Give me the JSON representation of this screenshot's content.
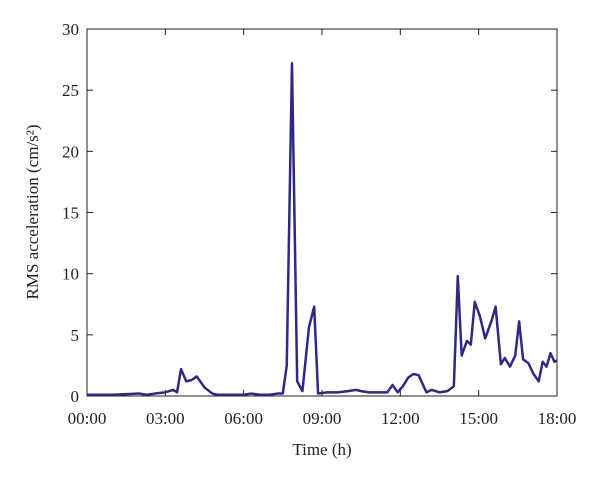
{
  "chart_data": {
    "type": "line",
    "xlabel": "Time (h)",
    "ylabel": "RMS acceleration (cm/s²)",
    "x": [
      0,
      0.5,
      1,
      1.5,
      2,
      2.3,
      2.6,
      3,
      3.3,
      3.45,
      3.6,
      3.8,
      4.0,
      4.2,
      4.5,
      4.8,
      5,
      5.5,
      6,
      6.3,
      6.6,
      7,
      7.3,
      7.5,
      7.65,
      7.85,
      8.05,
      8.25,
      8.5,
      8.7,
      8.85,
      9.2,
      9.6,
      10,
      10.3,
      10.5,
      10.8,
      11.2,
      11.5,
      11.7,
      11.9,
      12.1,
      12.3,
      12.5,
      12.7,
      13,
      13.2,
      13.5,
      13.8,
      14.05,
      14.2,
      14.35,
      14.55,
      14.7,
      14.85,
      15.05,
      15.25,
      15.5,
      15.65,
      15.85,
      16.0,
      16.2,
      16.4,
      16.55,
      16.7,
      16.9,
      17.1,
      17.3,
      17.45,
      17.6,
      17.75,
      17.9,
      18.0
    ],
    "series": [
      {
        "name": "RMS acceleration",
        "color": "#2e2a84",
        "values": [
          0.1,
          0.1,
          0.1,
          0.15,
          0.2,
          0.1,
          0.2,
          0.3,
          0.5,
          0.3,
          2.2,
          1.2,
          1.3,
          1.6,
          0.7,
          0.2,
          0.1,
          0.1,
          0.1,
          0.2,
          0.1,
          0.1,
          0.2,
          0.2,
          2.5,
          27.2,
          1.2,
          0.4,
          5.6,
          7.3,
          0.2,
          0.3,
          0.3,
          0.4,
          0.5,
          0.4,
          0.3,
          0.3,
          0.3,
          0.9,
          0.3,
          0.8,
          1.5,
          1.8,
          1.7,
          0.3,
          0.5,
          0.3,
          0.4,
          0.8,
          9.8,
          3.3,
          4.5,
          4.2,
          7.7,
          6.5,
          4.7,
          6.2,
          7.3,
          2.6,
          3.1,
          2.4,
          3.3,
          6.1,
          3.0,
          2.7,
          1.8,
          1.2,
          2.8,
          2.4,
          3.5,
          2.8,
          2.9
        ]
      }
    ],
    "xlim": [
      0,
      18
    ],
    "xticks": [
      {
        "value": 0,
        "label": "00:00"
      },
      {
        "value": 3,
        "label": "03:00"
      },
      {
        "value": 6,
        "label": "06:00"
      },
      {
        "value": 9,
        "label": "09:00"
      },
      {
        "value": 12,
        "label": "12:00"
      },
      {
        "value": 15,
        "label": "15:00"
      },
      {
        "value": 18,
        "label": "18:00"
      }
    ],
    "ylim": [
      0,
      30
    ],
    "yticks": [
      0,
      5,
      10,
      15,
      20,
      25,
      30
    ],
    "grid": false
  }
}
